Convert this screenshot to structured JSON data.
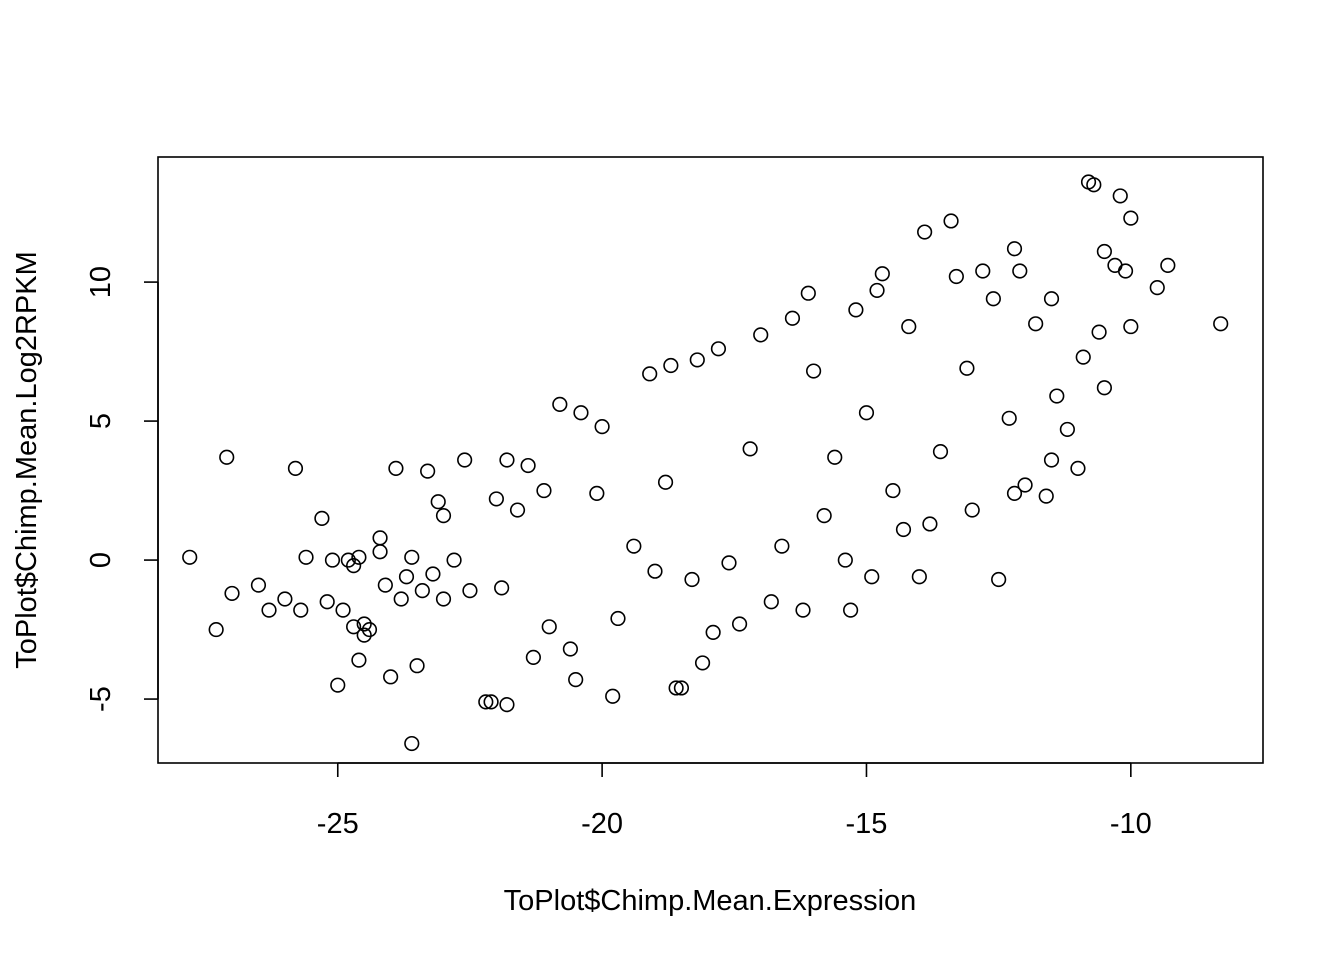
{
  "chart_data": {
    "type": "scatter",
    "title": "",
    "xlabel": "ToPlot$Chimp.Mean.Expression",
    "ylabel": "ToPlot$Chimp.Mean.Log2RPKM",
    "xlim": [
      -28.4,
      -7.5
    ],
    "ylim": [
      -7.3,
      14.5
    ],
    "xticks": [
      -25,
      -20,
      -15,
      -10
    ],
    "yticks": [
      -5,
      0,
      5,
      10
    ],
    "xtick_labels": [
      "-25",
      "-20",
      "-15",
      "-10"
    ],
    "ytick_labels": [
      "-5",
      "0",
      "5",
      "10"
    ],
    "grid": false,
    "legend": "none",
    "marker": "open-circle",
    "color": "#000000",
    "series": [
      {
        "x": [
          -27.8,
          -27.3,
          -27.1,
          -27.0,
          -26.5,
          -26.3,
          -26.0,
          -25.8,
          -25.7,
          -25.6,
          -25.3,
          -25.2,
          -25.1,
          -25.0,
          -24.9,
          -24.8,
          -24.7,
          -24.7,
          -24.6,
          -24.6,
          -24.5,
          -24.5,
          -24.4,
          -24.2,
          -24.2,
          -24.1,
          -24.0,
          -23.9,
          -23.8,
          -23.7,
          -23.6,
          -23.6,
          -23.5,
          -23.4,
          -23.3,
          -23.2,
          -23.1,
          -23.0,
          -23.0,
          -22.8,
          -22.6,
          -22.5,
          -22.2,
          -22.1,
          -22.0,
          -21.9,
          -21.8,
          -21.8,
          -21.6,
          -21.4,
          -21.3,
          -21.1,
          -21.0,
          -20.8,
          -20.6,
          -20.5,
          -20.4,
          -20.1,
          -20.0,
          -19.8,
          -19.7,
          -19.4,
          -19.1,
          -19.0,
          -18.8,
          -18.7,
          -18.6,
          -18.5,
          -18.3,
          -18.2,
          -18.1,
          -17.9,
          -17.8,
          -17.6,
          -17.4,
          -17.2,
          -17.0,
          -16.8,
          -16.6,
          -16.4,
          -16.2,
          -16.1,
          -16.0,
          -15.8,
          -15.6,
          -15.4,
          -15.3,
          -15.2,
          -15.0,
          -14.9,
          -14.8,
          -14.7,
          -14.5,
          -14.3,
          -14.2,
          -14.0,
          -13.9,
          -13.8,
          -13.6,
          -13.4,
          -13.3,
          -13.1,
          -13.0,
          -12.8,
          -12.6,
          -12.5,
          -12.3,
          -12.2,
          -12.2,
          -12.1,
          -12.0,
          -11.8,
          -11.6,
          -11.5,
          -11.5,
          -11.4,
          -11.2,
          -11.0,
          -10.9,
          -10.8,
          -10.7,
          -10.6,
          -10.5,
          -10.5,
          -10.3,
          -10.2,
          -10.1,
          -10.0,
          -10.0,
          -9.5,
          -9.3,
          -8.3
        ],
        "y": [
          0.1,
          -2.5,
          3.7,
          -1.2,
          -0.9,
          -1.8,
          -1.4,
          3.3,
          -1.8,
          0.1,
          1.5,
          -1.5,
          0.0,
          -4.5,
          -1.8,
          0.0,
          -0.2,
          -2.4,
          0.1,
          -3.6,
          -2.7,
          -2.3,
          -2.5,
          0.8,
          0.3,
          -0.9,
          -4.2,
          3.3,
          -1.4,
          -0.6,
          -6.6,
          0.1,
          -3.8,
          -1.1,
          3.2,
          -0.5,
          2.1,
          -1.4,
          1.6,
          0.0,
          3.6,
          -1.1,
          -5.1,
          -5.1,
          2.2,
          -1.0,
          3.6,
          -5.2,
          1.8,
          3.4,
          -3.5,
          2.5,
          -2.4,
          5.6,
          -3.2,
          -4.3,
          5.3,
          2.4,
          4.8,
          -4.9,
          -2.1,
          0.5,
          6.7,
          -0.4,
          2.8,
          7.0,
          -4.6,
          -4.6,
          -0.7,
          7.2,
          -3.7,
          -2.6,
          7.6,
          -0.1,
          -2.3,
          4.0,
          8.1,
          -1.5,
          0.5,
          8.7,
          -1.8,
          9.6,
          6.8,
          1.6,
          3.7,
          0.0,
          -1.8,
          9.0,
          5.3,
          -0.6,
          9.7,
          10.3,
          2.5,
          1.1,
          8.4,
          -0.6,
          11.8,
          1.3,
          3.9,
          12.2,
          10.2,
          6.9,
          1.8,
          10.4,
          9.4,
          -0.7,
          5.1,
          11.2,
          2.4,
          10.4,
          2.7,
          8.5,
          2.3,
          3.6,
          9.4,
          5.9,
          4.7,
          3.3,
          7.3,
          13.6,
          13.5,
          8.2,
          11.1,
          6.2,
          10.6,
          13.1,
          10.4,
          12.3,
          8.4,
          9.8,
          10.6,
          8.5
        ]
      }
    ],
    "density_model": {
      "note": "",
      "clusters": []
    }
  }
}
